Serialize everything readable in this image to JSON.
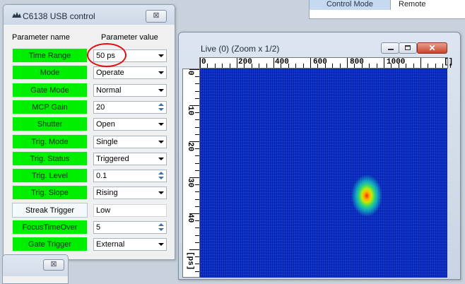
{
  "background_table": {
    "label": "Control Mode",
    "value": "Remote"
  },
  "control_window": {
    "title": "C6138 USB control",
    "close_glyph": "⊠",
    "header_name": "Parameter name",
    "header_value": "Parameter value",
    "rows": [
      {
        "name": "Time Range",
        "value": "50 ps",
        "kind": "dropdown"
      },
      {
        "name": "Mode",
        "value": "Operate",
        "kind": "dropdown"
      },
      {
        "name": "Gate Mode",
        "value": "Normal",
        "kind": "dropdown"
      },
      {
        "name": "MCP Gain",
        "value": "20",
        "kind": "spin"
      },
      {
        "name": "Shutter",
        "value": "Open",
        "kind": "dropdown"
      },
      {
        "name": "Trig. Mode",
        "value": "Single",
        "kind": "dropdown"
      },
      {
        "name": "Trig. Status",
        "value": "Triggered",
        "kind": "dropdown"
      },
      {
        "name": "Trig. Level",
        "value": "0.1",
        "kind": "spin"
      },
      {
        "name": "Trig. Slope",
        "value": "Rising",
        "kind": "dropdown"
      },
      {
        "name": "Streak Trigger",
        "value": "Low",
        "kind": "text"
      },
      {
        "name": "FocusTimeOver",
        "value": "5",
        "kind": "spin"
      },
      {
        "name": "Gate Trigger",
        "value": "External",
        "kind": "dropdown"
      }
    ]
  },
  "mini_window": {
    "close_glyph": "⊠"
  },
  "live_window": {
    "title": "Live (0) (Zoom x 1/2)",
    "close_glyph": "✕",
    "x_ruler_labels": [
      "0",
      "200",
      "400",
      "600",
      "800",
      "1000",
      "[]"
    ],
    "y_ruler_labels": [
      "0",
      "10",
      "20",
      "30",
      "40",
      "[ps]"
    ]
  },
  "colors": {
    "param_active": "#00ef00",
    "highlight_ring": "#e01010",
    "image_background": "#0c2fc8"
  }
}
